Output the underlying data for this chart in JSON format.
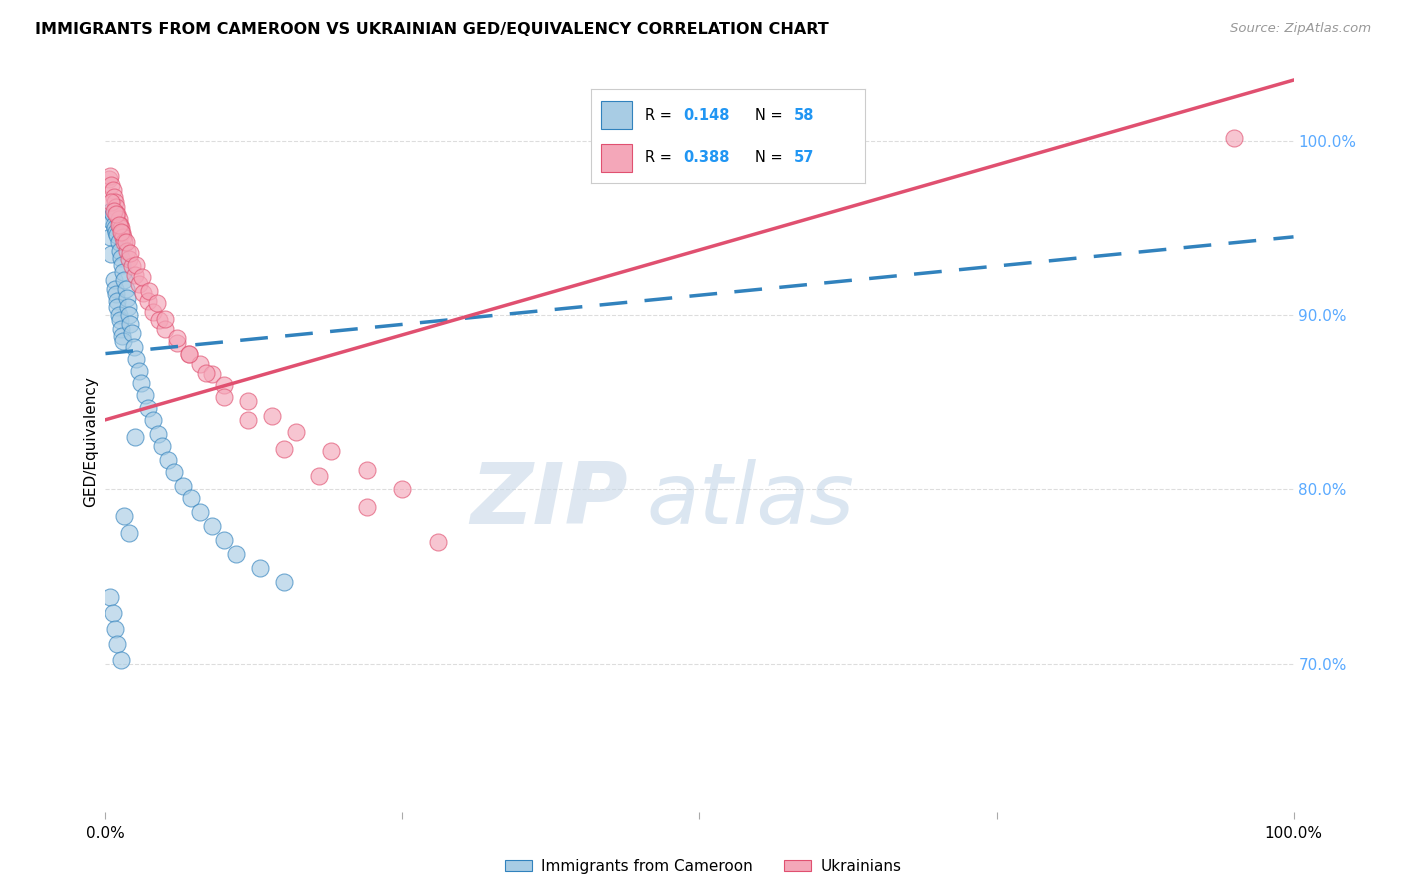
{
  "title": "IMMIGRANTS FROM CAMEROON VS UKRAINIAN GED/EQUIVALENCY CORRELATION CHART",
  "source": "Source: ZipAtlas.com",
  "ylabel": "GED/Equivalency",
  "yaxis_values": [
    0.7,
    0.8,
    0.9,
    1.0
  ],
  "xlim": [
    0.0,
    1.0
  ],
  "ylim": [
    0.615,
    1.04
  ],
  "color_blue": "#a8cce4",
  "color_pink": "#f4a7b9",
  "color_blue_line": "#3182bd",
  "color_pink_line": "#e05070",
  "color_value_blue": "#2196F3",
  "right_axis_color": "#5aaaff",
  "grid_color": "#dddddd",
  "legend_r1": "0.148",
  "legend_n1": "58",
  "legend_r2": "0.388",
  "legend_n2": "57",
  "cam_x": [
    0.003,
    0.004,
    0.005,
    0.005,
    0.006,
    0.007,
    0.007,
    0.008,
    0.008,
    0.009,
    0.009,
    0.01,
    0.01,
    0.01,
    0.011,
    0.011,
    0.012,
    0.012,
    0.013,
    0.013,
    0.014,
    0.014,
    0.015,
    0.015,
    0.016,
    0.017,
    0.018,
    0.019,
    0.02,
    0.021,
    0.022,
    0.024,
    0.026,
    0.028,
    0.03,
    0.033,
    0.036,
    0.04,
    0.044,
    0.048,
    0.053,
    0.058,
    0.065,
    0.072,
    0.08,
    0.09,
    0.1,
    0.11,
    0.13,
    0.15,
    0.004,
    0.006,
    0.008,
    0.01,
    0.013,
    0.016,
    0.02,
    0.025
  ],
  "cam_y": [
    0.955,
    0.945,
    0.96,
    0.935,
    0.958,
    0.952,
    0.92,
    0.95,
    0.915,
    0.948,
    0.912,
    0.946,
    0.908,
    0.905,
    0.942,
    0.9,
    0.937,
    0.897,
    0.933,
    0.892,
    0.929,
    0.888,
    0.925,
    0.885,
    0.92,
    0.915,
    0.91,
    0.905,
    0.9,
    0.895,
    0.89,
    0.882,
    0.875,
    0.868,
    0.861,
    0.854,
    0.847,
    0.84,
    0.832,
    0.825,
    0.817,
    0.81,
    0.802,
    0.795,
    0.787,
    0.779,
    0.771,
    0.763,
    0.755,
    0.747,
    0.738,
    0.729,
    0.72,
    0.711,
    0.702,
    0.785,
    0.775,
    0.83
  ],
  "ukr_x": [
    0.003,
    0.004,
    0.005,
    0.006,
    0.007,
    0.008,
    0.009,
    0.01,
    0.011,
    0.012,
    0.013,
    0.014,
    0.015,
    0.016,
    0.018,
    0.02,
    0.022,
    0.025,
    0.028,
    0.032,
    0.036,
    0.04,
    0.045,
    0.05,
    0.06,
    0.07,
    0.08,
    0.09,
    0.1,
    0.12,
    0.14,
    0.16,
    0.19,
    0.22,
    0.25,
    0.005,
    0.007,
    0.009,
    0.011,
    0.013,
    0.017,
    0.021,
    0.026,
    0.031,
    0.037,
    0.043,
    0.05,
    0.06,
    0.07,
    0.085,
    0.1,
    0.12,
    0.15,
    0.18,
    0.22,
    0.28,
    0.95
  ],
  "ukr_y": [
    0.978,
    0.98,
    0.975,
    0.972,
    0.968,
    0.965,
    0.962,
    0.958,
    0.955,
    0.952,
    0.95,
    0.947,
    0.945,
    0.942,
    0.937,
    0.932,
    0.928,
    0.923,
    0.918,
    0.913,
    0.908,
    0.902,
    0.897,
    0.892,
    0.884,
    0.878,
    0.872,
    0.866,
    0.86,
    0.851,
    0.842,
    0.833,
    0.822,
    0.811,
    0.8,
    0.965,
    0.96,
    0.958,
    0.952,
    0.948,
    0.942,
    0.936,
    0.929,
    0.922,
    0.914,
    0.907,
    0.898,
    0.887,
    0.878,
    0.867,
    0.853,
    0.84,
    0.823,
    0.808,
    0.79,
    0.77,
    1.002
  ],
  "trend_cam_x0": 0.0,
  "trend_cam_y0": 0.878,
  "trend_cam_x1": 1.0,
  "trend_cam_y1": 0.945,
  "trend_ukr_x0": 0.0,
  "trend_ukr_y0": 0.84,
  "trend_ukr_x1": 1.0,
  "trend_ukr_y1": 1.035
}
